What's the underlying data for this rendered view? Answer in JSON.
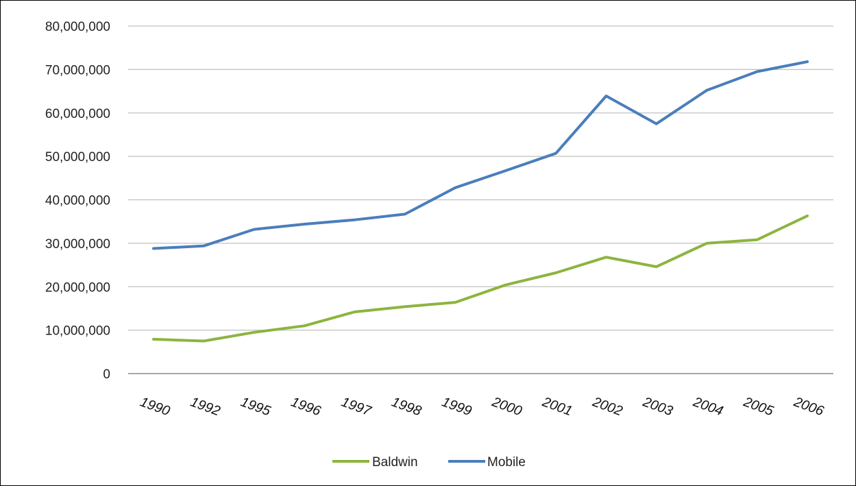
{
  "chart_data": {
    "type": "line",
    "title": "",
    "xlabel": "",
    "ylabel": "",
    "categories": [
      "1990",
      "1992",
      "1995",
      "1996",
      "1997",
      "1998",
      "1999",
      "2000",
      "2001",
      "2002",
      "2003",
      "2004",
      "2005",
      "2006"
    ],
    "y_ticks": [
      "80,000,000",
      "70,000,000",
      "60,000,000",
      "50,000,000",
      "40,000,000",
      "30,000,000",
      "20,000,000",
      "10,000,000",
      "0"
    ],
    "y_tick_values": [
      80000000,
      70000000,
      60000000,
      50000000,
      40000000,
      30000000,
      20000000,
      10000000,
      0
    ],
    "ylim": [
      0,
      80000000
    ],
    "grid": true,
    "legend_position": "bottom",
    "series": [
      {
        "name": "Baldwin",
        "color": "#8db43e",
        "values": [
          7900000,
          7500000,
          9500000,
          11000000,
          14200000,
          15400000,
          16400000,
          20400000,
          23200000,
          26800000,
          24600000,
          30000000,
          30800000,
          36300000
        ]
      },
      {
        "name": "Mobile",
        "color": "#4a7ebb",
        "values": [
          28800000,
          29400000,
          33200000,
          34400000,
          35400000,
          36700000,
          42800000,
          46700000,
          50700000,
          63900000,
          57500000,
          65200000,
          69500000,
          71800000
        ]
      }
    ]
  }
}
